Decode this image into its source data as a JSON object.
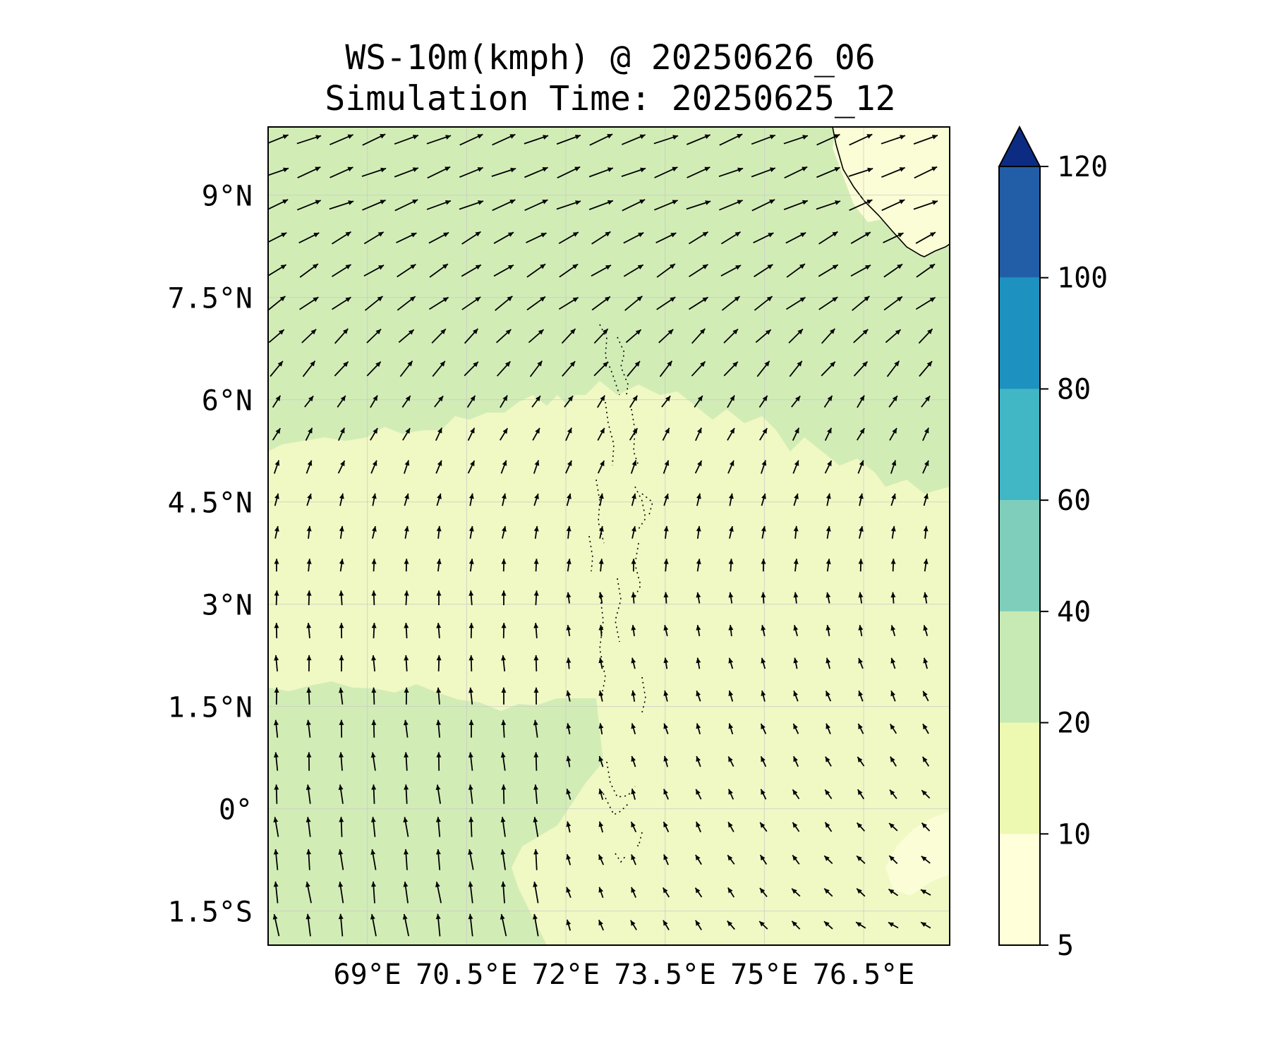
{
  "title_line1": "WS-10m(kmph) @ 20250626_06",
  "title_line2": "Simulation Time: 20250625_12",
  "map": {
    "lon_range": [
      67.5,
      77.8
    ],
    "lat_range": [
      -2.0,
      10.0
    ],
    "lat_ticks": [
      {
        "value": 9,
        "label": "9°N"
      },
      {
        "value": 7.5,
        "label": "7.5°N"
      },
      {
        "value": 6,
        "label": "6°N"
      },
      {
        "value": 4.5,
        "label": "4.5°N"
      },
      {
        "value": 3,
        "label": "3°N"
      },
      {
        "value": 1.5,
        "label": "1.5°N"
      },
      {
        "value": 0,
        "label": "0°"
      },
      {
        "value": -1.5,
        "label": "1.5°S"
      }
    ],
    "lon_ticks": [
      {
        "value": 69,
        "label": "69°E"
      },
      {
        "value": 70.5,
        "label": "70.5°E"
      },
      {
        "value": 72,
        "label": "72°E"
      },
      {
        "value": 73.5,
        "label": "73.5°E"
      },
      {
        "value": 75,
        "label": "75°E"
      },
      {
        "value": 76.5,
        "label": "76.5°E"
      }
    ],
    "gridlines": true
  },
  "colorbar": {
    "ticks": [
      5,
      10,
      20,
      40,
      60,
      80,
      100,
      120
    ],
    "colors": [
      "#ffffd9",
      "#edf8b1",
      "#c7e9b4",
      "#7fcdbb",
      "#41b6c4",
      "#1d91c0",
      "#225ea8",
      "#0c2c84"
    ],
    "extend": "max"
  },
  "colors": {
    "band_5_10": "#fbfdd6",
    "band_10_20": "#f0f8c4",
    "band_20_40": "#d2ecb6"
  }
}
